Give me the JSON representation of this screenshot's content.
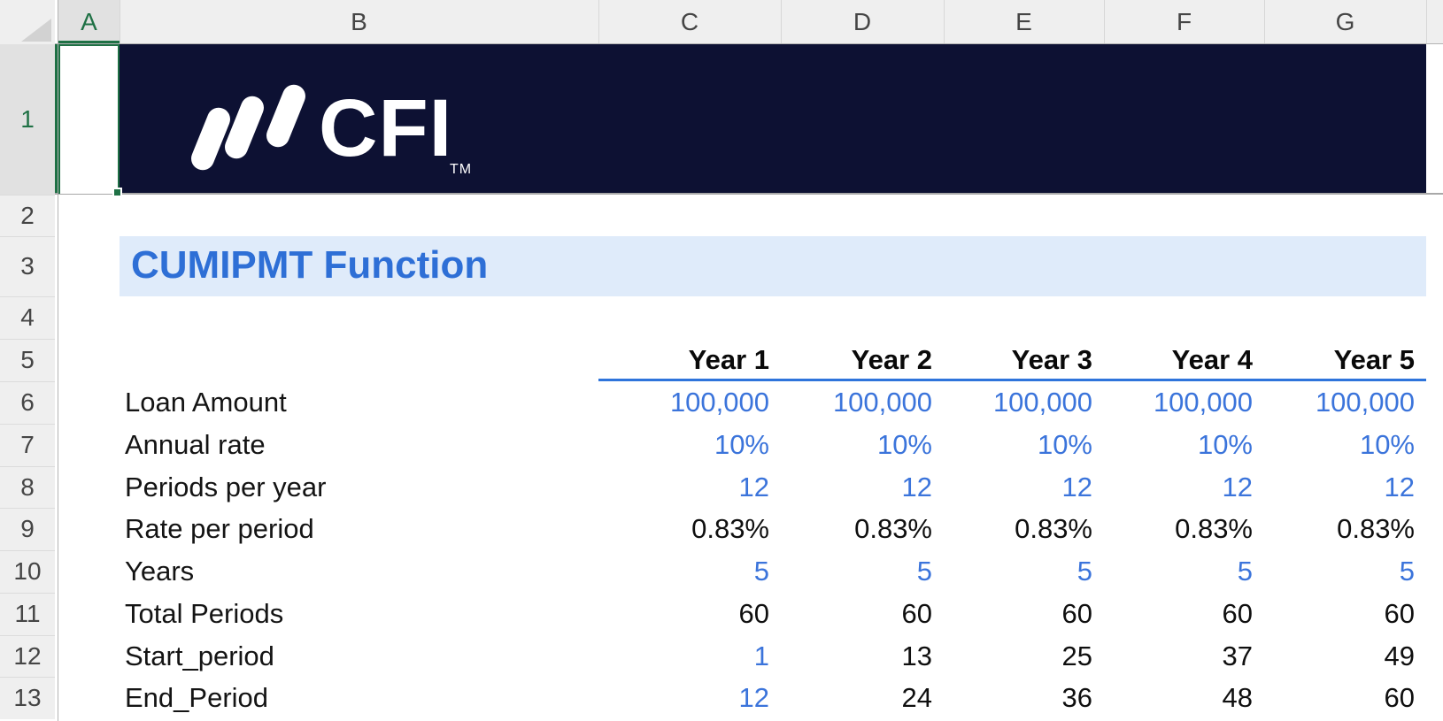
{
  "grid": {
    "column_headers": [
      {
        "label": "A",
        "selected": true
      },
      {
        "label": "B",
        "selected": false
      },
      {
        "label": "C",
        "selected": false
      },
      {
        "label": "D",
        "selected": false
      },
      {
        "label": "E",
        "selected": false
      },
      {
        "label": "F",
        "selected": false
      },
      {
        "label": "G",
        "selected": false
      },
      {
        "label": "",
        "selected": false
      }
    ],
    "row_headers": [
      {
        "label": "1",
        "selected": true
      },
      {
        "label": "2",
        "selected": false
      },
      {
        "label": "3",
        "selected": false
      },
      {
        "label": "4",
        "selected": false
      },
      {
        "label": "5",
        "selected": false
      },
      {
        "label": "6",
        "selected": false
      },
      {
        "label": "7",
        "selected": false
      },
      {
        "label": "8",
        "selected": false
      },
      {
        "label": "9",
        "selected": false
      },
      {
        "label": "10",
        "selected": false
      },
      {
        "label": "11",
        "selected": false
      },
      {
        "label": "12",
        "selected": false
      },
      {
        "label": "13",
        "selected": false
      }
    ],
    "selected_cell": "A1"
  },
  "banner": {
    "brand": "CFI",
    "trademark": "TM",
    "logo_icon": "three-slanted-bars"
  },
  "title": {
    "text": "CUMIPMT Function"
  },
  "worksheet_table": {
    "year_headers": [
      "Year 1",
      "Year 2",
      "Year 3",
      "Year 4",
      "Year 5"
    ],
    "rows": [
      {
        "label": "Loan Amount",
        "values": [
          "100,000",
          "100,000",
          "100,000",
          "100,000",
          "100,000"
        ],
        "value_colors": [
          "blue",
          "blue",
          "blue",
          "blue",
          "blue"
        ]
      },
      {
        "label": "Annual rate",
        "values": [
          "10%",
          "10%",
          "10%",
          "10%",
          "10%"
        ],
        "value_colors": [
          "blue",
          "blue",
          "blue",
          "blue",
          "blue"
        ]
      },
      {
        "label": "Periods per year",
        "values": [
          "12",
          "12",
          "12",
          "12",
          "12"
        ],
        "value_colors": [
          "blue",
          "blue",
          "blue",
          "blue",
          "blue"
        ]
      },
      {
        "label": "Rate per period",
        "values": [
          "0.83%",
          "0.83%",
          "0.83%",
          "0.83%",
          "0.83%"
        ],
        "value_colors": [
          "black",
          "black",
          "black",
          "black",
          "black"
        ]
      },
      {
        "label": "Years",
        "values": [
          "5",
          "5",
          "5",
          "5",
          "5"
        ],
        "value_colors": [
          "blue",
          "blue",
          "blue",
          "blue",
          "blue"
        ]
      },
      {
        "label": "Total Periods",
        "values": [
          "60",
          "60",
          "60",
          "60",
          "60"
        ],
        "value_colors": [
          "black",
          "black",
          "black",
          "black",
          "black"
        ]
      },
      {
        "label": "Start_period",
        "values": [
          "1",
          "13",
          "25",
          "37",
          "49"
        ],
        "value_colors": [
          "blue",
          "black",
          "black",
          "black",
          "black"
        ]
      },
      {
        "label": "End_Period",
        "values": [
          "12",
          "24",
          "36",
          "48",
          "60"
        ],
        "value_colors": [
          "blue",
          "black",
          "black",
          "black",
          "black"
        ]
      }
    ]
  },
  "colors": {
    "banner_navy": "#0d1133",
    "title_blue": "#2e6fd6",
    "title_band_blue": "#dfebfa",
    "input_value_blue": "#3b74db",
    "year_underline_blue": "#2e74db",
    "selection_green": "#1f7145",
    "header_gray": "#efefef"
  }
}
